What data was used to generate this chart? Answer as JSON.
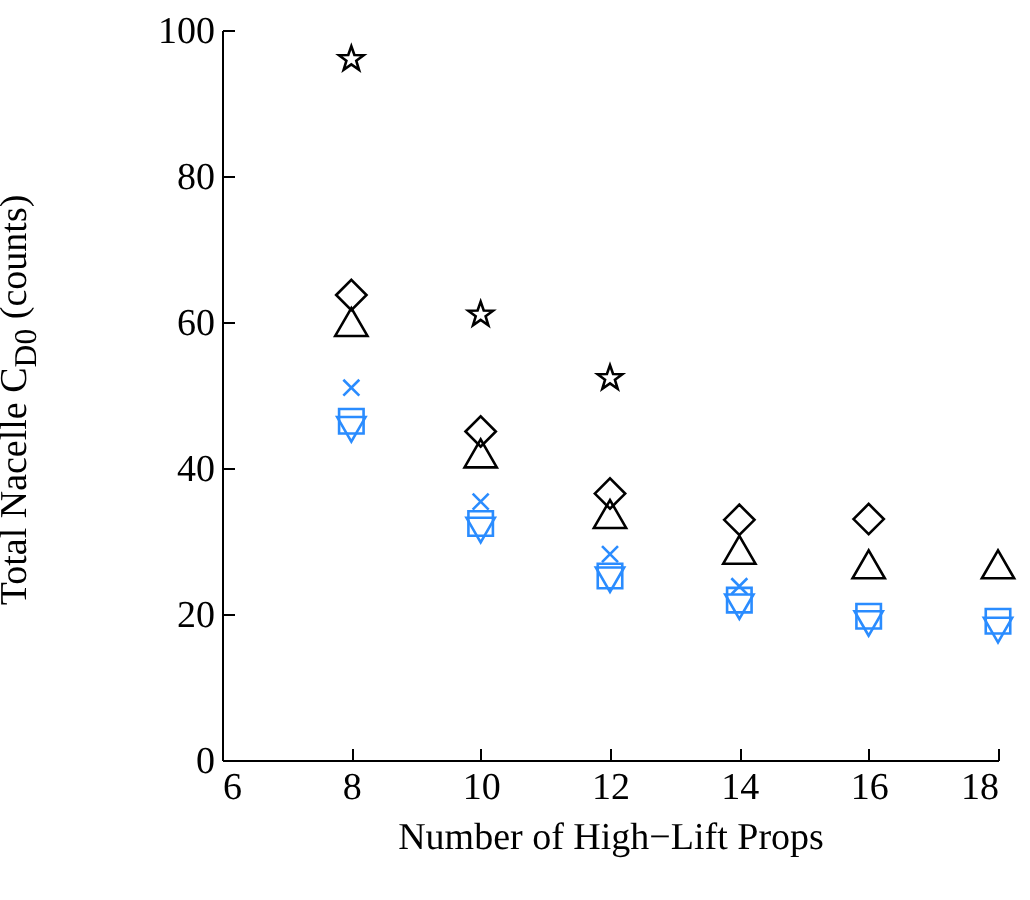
{
  "chart_data": {
    "type": "scatter",
    "xlabel": "Number of High−Lift Props",
    "ylabel": "Total Nacelle C$_{D0}$ (counts)",
    "x": [
      8,
      10,
      12,
      14,
      16,
      18
    ],
    "xlim": [
      6,
      18
    ],
    "xticks": [
      6,
      8,
      10,
      12,
      14,
      16,
      18
    ],
    "ylim": [
      0,
      100
    ],
    "yticks": [
      0,
      20,
      40,
      60,
      80,
      100
    ],
    "series": [
      {
        "color": "#000000",
        "marker": "star",
        "values": [
          96,
          61,
          52.3,
          null,
          null,
          null
        ]
      },
      {
        "color": "#000000",
        "marker": "diamond",
        "values": [
          63.7,
          45,
          36.5,
          32.9,
          33,
          null
        ]
      },
      {
        "color": "#000000",
        "marker": "triangle",
        "values": [
          60,
          42,
          33.7,
          28.8,
          26.8,
          26.8
        ]
      },
      {
        "color": "#2a8cff",
        "marker": "cross",
        "values": [
          51,
          35.4,
          28.2,
          23.8,
          null,
          null
        ]
      },
      {
        "color": "#2a8cff",
        "marker": "square",
        "values": [
          46.4,
          32.4,
          25.2,
          21.9,
          19.7,
          19
        ]
      },
      {
        "color": "#2a8cff",
        "marker": "triangle-down",
        "values": [
          45.3,
          31.5,
          24.7,
          21,
          18.7,
          17.8
        ]
      }
    ]
  }
}
